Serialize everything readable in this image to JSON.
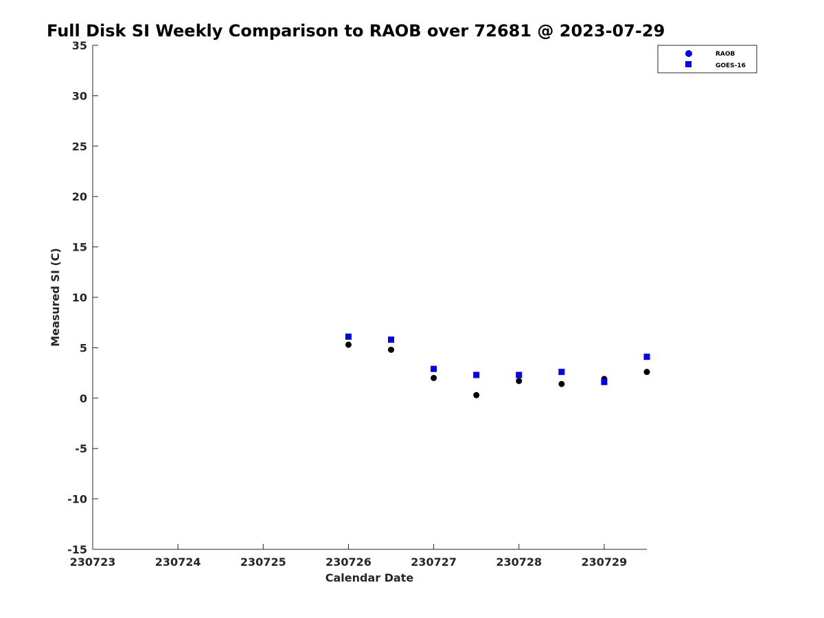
{
  "chart_data": {
    "type": "scatter",
    "title": "Full Disk SI Weekly Comparison to RAOB over 72681 @ 2023-07-29",
    "xlabel": "Calendar Date",
    "ylabel": "Measured SI (C)",
    "xlim": [
      230723,
      230729.5
    ],
    "ylim": [
      -15,
      35
    ],
    "x_ticks": [
      230723,
      230724,
      230725,
      230726,
      230727,
      230728,
      230729
    ],
    "x_tick_labels": [
      "230723",
      "230724",
      "230725",
      "230726",
      "230727",
      "230728",
      "230729"
    ],
    "y_ticks": [
      -15,
      -10,
      -5,
      0,
      5,
      10,
      15,
      20,
      25,
      30,
      35
    ],
    "y_tick_labels": [
      "-15",
      "-10",
      "-5",
      "0",
      "5",
      "10",
      "15",
      "20",
      "25",
      "30",
      "35"
    ],
    "grid": false,
    "legend_position": "top-right",
    "series": [
      {
        "name": "RAOB",
        "marker": "circle",
        "color": "#0000ff",
        "plot_color": "#000000",
        "x": [
          230726,
          230726.5,
          230727,
          230727.5,
          230728,
          230728.5,
          230729,
          230729.5
        ],
        "y": [
          5.3,
          4.8,
          2.0,
          0.3,
          1.7,
          1.4,
          1.9,
          2.6
        ]
      },
      {
        "name": "GOES-16",
        "marker": "square",
        "color": "#0000ff",
        "x": [
          230726,
          230726.5,
          230727,
          230727.5,
          230728,
          230728.5,
          230729,
          230729.5
        ],
        "y": [
          6.1,
          5.8,
          2.9,
          2.3,
          2.3,
          2.6,
          1.6,
          4.1
        ]
      }
    ]
  }
}
